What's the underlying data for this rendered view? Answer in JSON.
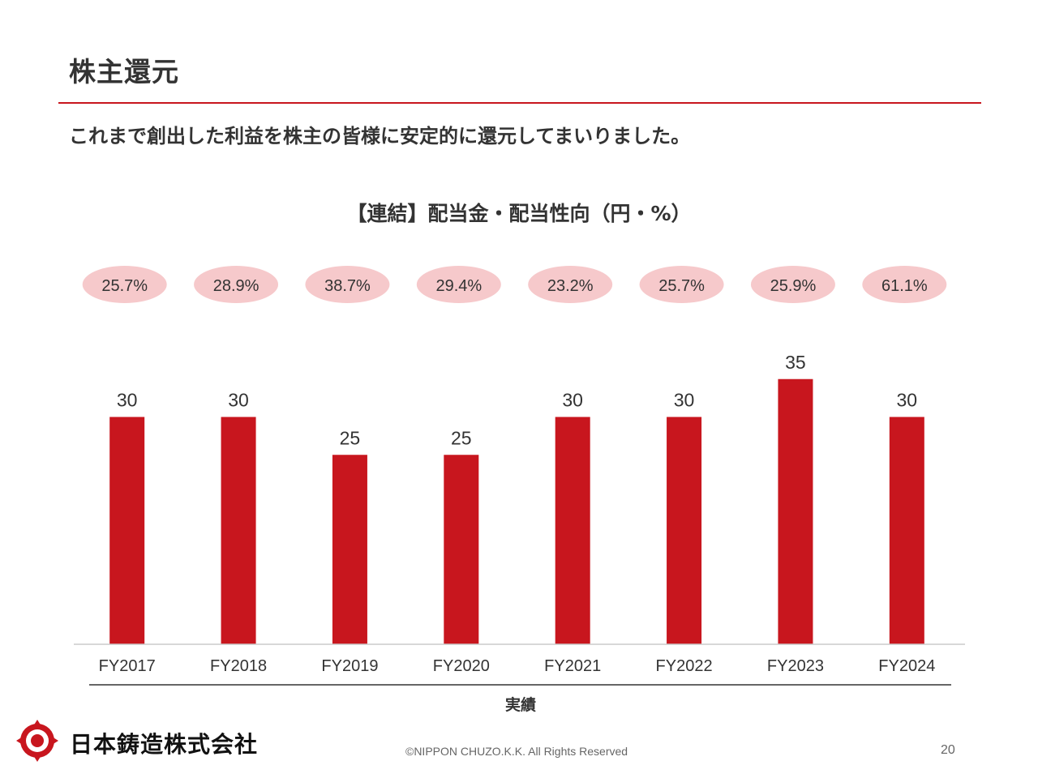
{
  "page": {
    "title": "株主還元",
    "lead": "これまで創出した利益を株主の皆様に安定的に還元してまいりました。",
    "company_name": "日本鋳造株式会社",
    "copyright": "©NIPPON CHUZO.K.K. All Rights Reserved",
    "page_number": "20"
  },
  "colors": {
    "accent": "#c8161e",
    "bar": "#c8161e",
    "ellipse": "#f6c9cb",
    "text": "#333333",
    "axis": "#cccccc"
  },
  "chart_data": {
    "type": "bar",
    "title": "【連結】配当金・配当性向（円・%）",
    "categories": [
      "FY2017",
      "FY2018",
      "FY2019",
      "FY2020",
      "FY2021",
      "FY2022",
      "FY2023",
      "FY2024"
    ],
    "series": [
      {
        "name": "配当金（円）",
        "values": [
          30,
          30,
          25,
          25,
          30,
          30,
          35,
          30
        ]
      },
      {
        "name": "配当性向（%）",
        "values": [
          "25.7%",
          "28.9%",
          "38.7%",
          "29.4%",
          "23.2%",
          "25.7%",
          "25.9%",
          "61.1%"
        ]
      }
    ],
    "group_label": "実績",
    "xlabel": "",
    "ylabel": "",
    "ylim": [
      0,
      35
    ],
    "grid": false
  }
}
